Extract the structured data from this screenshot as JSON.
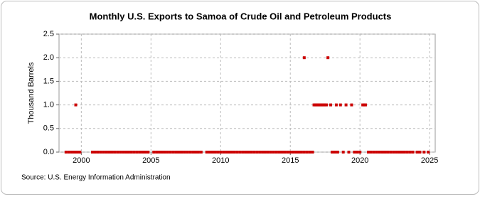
{
  "chart_data": {
    "type": "scatter",
    "title": "Monthly U.S. Exports to Samoa of Crude Oil and Petroleum Products",
    "y_label": "Thousand Barrels",
    "source": "Source: U.S. Energy Information Administration",
    "color": "#cc0000",
    "grid": true,
    "xlim": [
      1998.4,
      2025.4
    ],
    "xticks": [
      2000,
      2005,
      2010,
      2015,
      2020,
      2025
    ],
    "ylim": [
      0,
      2.5
    ],
    "yticks": [
      {
        "value": 0,
        "label": "0.0"
      },
      0.5,
      {
        "value": 1,
        "label": "1.0"
      },
      1.5,
      {
        "value": 2,
        "label": "2.0"
      },
      2.5
    ],
    "x": [
      1999.6,
      2016.0,
      2017.7,
      2016.7,
      2016.8,
      2016.9,
      2017.0,
      2017.1,
      2017.2,
      2017.3,
      2017.4,
      2017.5,
      2017.6,
      2017.9,
      2018.3,
      2018.6,
      2019.0,
      2019.4,
      2020.2,
      2020.3,
      2020.4,
      1998.9,
      1999.1,
      1999.3,
      1999.5,
      1999.7,
      1999.9,
      2000.8,
      2001.0,
      2001.2,
      2001.4,
      2001.6,
      2001.8,
      2002.0,
      2002.2,
      2002.4,
      2002.6,
      2002.8,
      2003.0,
      2003.2,
      2003.4,
      2003.6,
      2003.8,
      2004.0,
      2004.2,
      2004.4,
      2004.6,
      2004.8,
      2005.2,
      2005.4,
      2005.6,
      2005.8,
      2006.0,
      2006.2,
      2006.4,
      2006.6,
      2006.8,
      2007.0,
      2007.2,
      2007.4,
      2007.6,
      2007.8,
      2008.0,
      2008.2,
      2008.4,
      2008.6,
      2009.0,
      2009.2,
      2009.4,
      2009.6,
      2009.8,
      2010.0,
      2010.2,
      2010.4,
      2010.6,
      2010.8,
      2011.0,
      2011.2,
      2011.4,
      2011.6,
      2011.8,
      2012.0,
      2012.2,
      2012.4,
      2012.6,
      2012.8,
      2013.0,
      2013.2,
      2013.4,
      2013.6,
      2013.8,
      2014.0,
      2014.2,
      2014.4,
      2014.6,
      2014.8,
      2015.0,
      2015.2,
      2015.4,
      2015.6,
      2015.8,
      2016.0,
      2016.2,
      2016.4,
      2016.6,
      2018.0,
      2018.2,
      2018.4,
      2018.8,
      2019.2,
      2019.6,
      2019.8,
      2020.0,
      2020.6,
      2020.8,
      2021.0,
      2021.2,
      2021.4,
      2021.6,
      2021.8,
      2022.0,
      2022.2,
      2022.4,
      2022.6,
      2022.8,
      2023.0,
      2023.2,
      2023.4,
      2023.6,
      2023.8,
      2024.1,
      2024.3,
      2024.6,
      2024.9
    ],
    "values": [
      1,
      2,
      2,
      1,
      1,
      1,
      1,
      1,
      1,
      1,
      1,
      1,
      1,
      1,
      1,
      1,
      1,
      1,
      1,
      1,
      1,
      0,
      0,
      0,
      0,
      0,
      0,
      0,
      0,
      0,
      0,
      0,
      0,
      0,
      0,
      0,
      0,
      0,
      0,
      0,
      0,
      0,
      0,
      0,
      0,
      0,
      0,
      0,
      0,
      0,
      0,
      0,
      0,
      0,
      0,
      0,
      0,
      0,
      0,
      0,
      0,
      0,
      0,
      0,
      0,
      0,
      0,
      0,
      0,
      0,
      0,
      0,
      0,
      0,
      0,
      0,
      0,
      0,
      0,
      0,
      0,
      0,
      0,
      0,
      0,
      0,
      0,
      0,
      0,
      0,
      0,
      0,
      0,
      0,
      0,
      0,
      0,
      0,
      0,
      0,
      0,
      0,
      0,
      0,
      0,
      0,
      0,
      0,
      0,
      0,
      0,
      0,
      0,
      0,
      0,
      0,
      0,
      0,
      0,
      0,
      0,
      0,
      0,
      0,
      0,
      0,
      0,
      0,
      0,
      0,
      0,
      0,
      0,
      0
    ]
  }
}
